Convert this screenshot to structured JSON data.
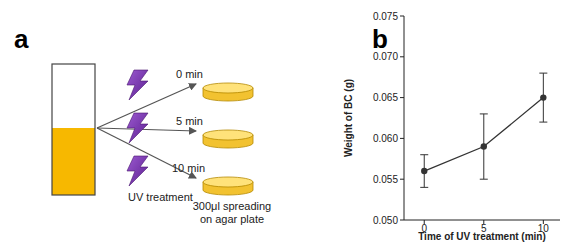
{
  "panel_labels": [
    "a",
    "b"
  ],
  "diagram": {
    "times": [
      "0 min",
      "5 min",
      "10 min"
    ],
    "treatment": "UV treatment",
    "result": [
      "300μl spreading",
      "on agar plate"
    ]
  },
  "chart_data": {
    "type": "line",
    "x_label": "Time of UV treatment (min)",
    "y_label": "Weight of BC (g)",
    "x": [
      0,
      5,
      10
    ],
    "values": [
      0.056,
      0.059,
      0.065
    ],
    "errors": [
      0.002,
      0.004,
      0.003
    ],
    "color": "#333333",
    "marker": "circle",
    "line_style": "solid",
    "grid": false,
    "xlim": [
      -1.7,
      11.4
    ],
    "xticks": [
      0,
      5,
      10
    ],
    "ylim": [
      0.05,
      0.075
    ],
    "yticks": [
      {
        "value": 0.05,
        "label": "0.050"
      },
      0.055,
      {
        "value": 0.06,
        "label": "0.060"
      },
      0.065,
      {
        "value": 0.07,
        "label": "0.070"
      },
      0.075
    ]
  }
}
